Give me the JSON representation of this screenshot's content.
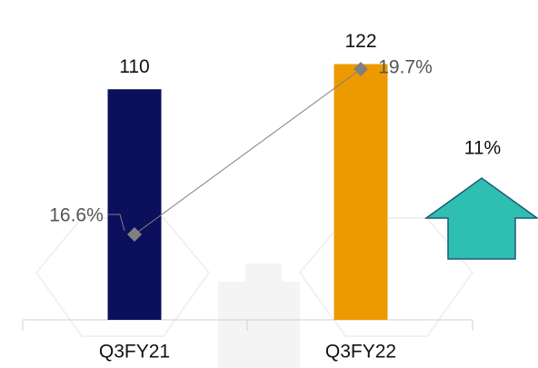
{
  "chart_data": {
    "type": "bar",
    "categories": [
      "Q3FY21",
      "Q3FY22"
    ],
    "bar_colors": [
      "#0b0f5c",
      "#ec9a00"
    ],
    "values": [
      110,
      122
    ],
    "ylim": [
      0,
      140
    ],
    "line": {
      "color": "#808080",
      "axis": "y2",
      "values": [
        16.6,
        19.7
      ],
      "value_labels": [
        "16.6%",
        "19.7%"
      ]
    },
    "y2lim": [
      15,
      20.5
    ],
    "annotation": {
      "text": "11%",
      "color": "#2fbfb0"
    }
  }
}
